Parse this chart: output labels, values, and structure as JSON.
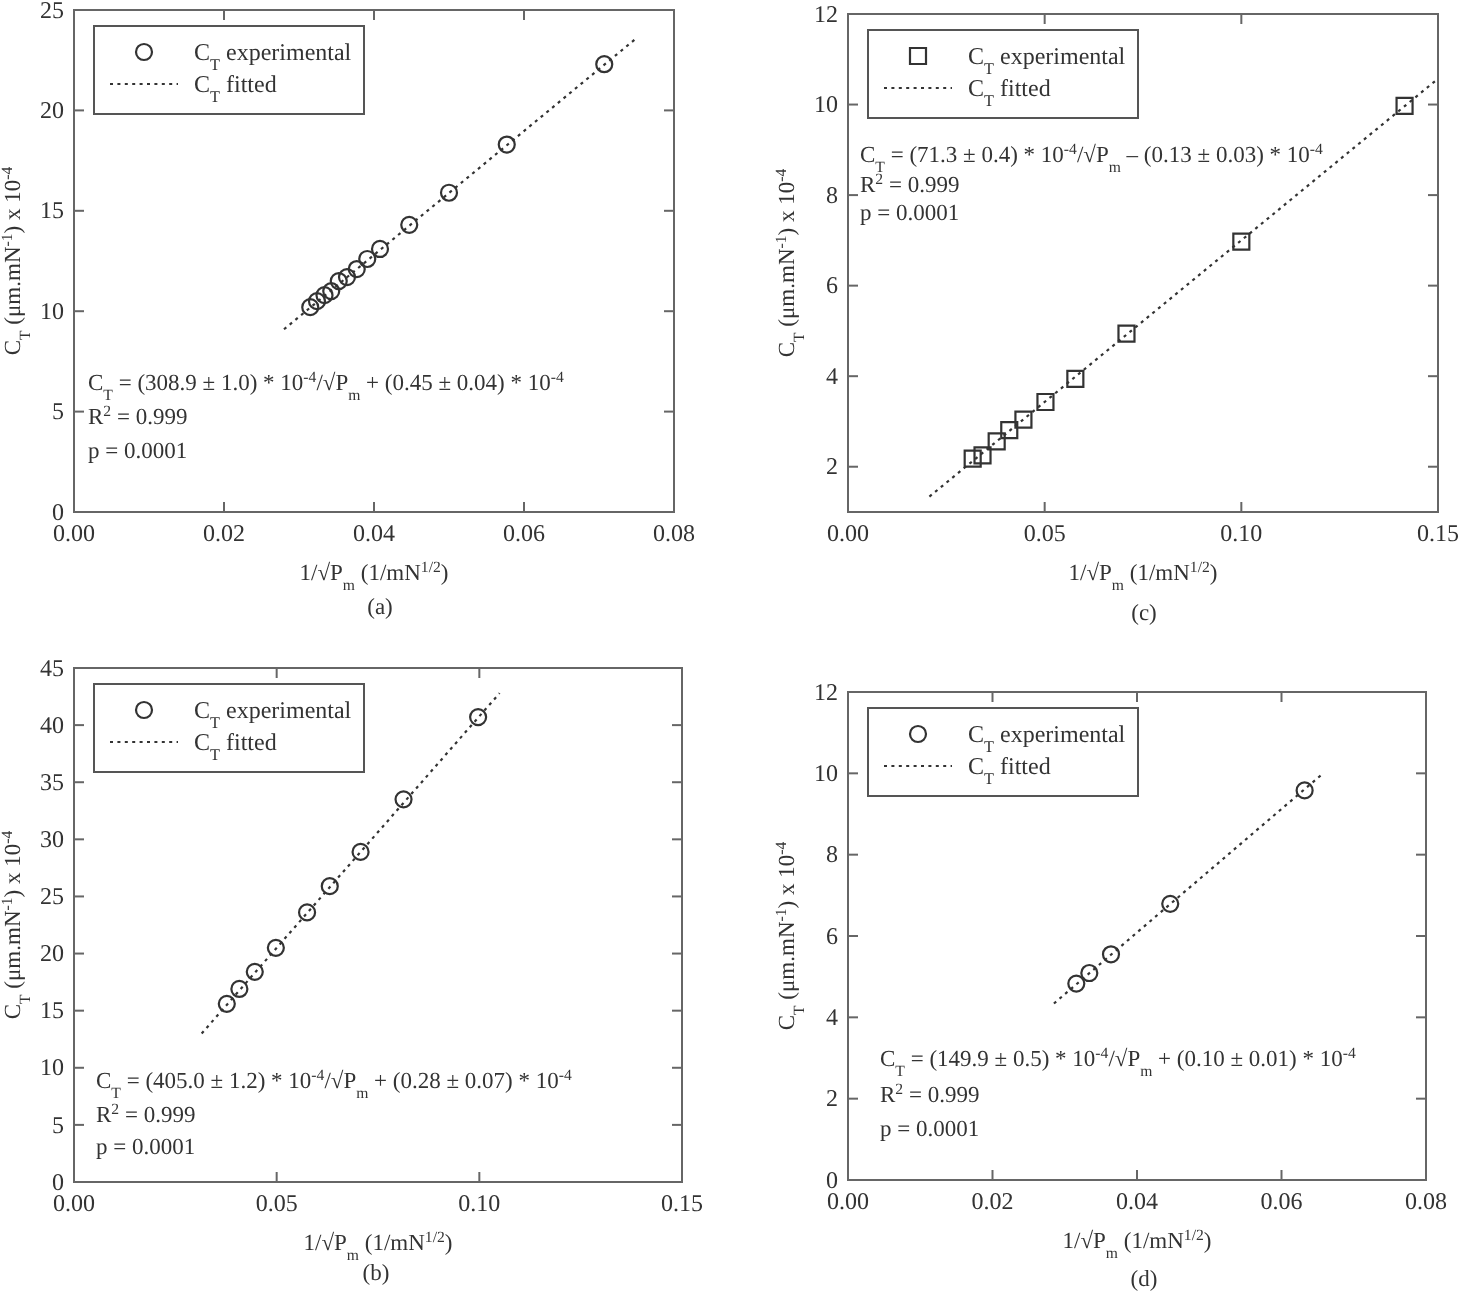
{
  "chart_data": [
    {
      "type": "scatter",
      "xlabel": "1/√P$_{m}$ (1/mN$^{1/2}$)",
      "ylabel": "C$_{T}$ (μm.mN$^{-1}$) x 10$^{-4}$",
      "xlim": [
        0,
        0.08
      ],
      "xticks": [
        {
          "value": 0,
          "label": "0.00"
        },
        {
          "value": 0.02,
          "label": "0.02"
        },
        {
          "value": 0.04,
          "label": "0.04"
        },
        {
          "value": 0.06,
          "label": "0.06"
        },
        {
          "value": 0.08,
          "label": "0.08"
        }
      ],
      "ylim": [
        0,
        25
      ],
      "yticks": [
        0,
        5,
        10,
        15,
        20,
        25
      ],
      "legend": "top left",
      "grid": false,
      "annotations": [
        "C$_{T}$ = (308.9 ± 1.0) * 10$^{-4}$/√P$_{m}$ + (0.45 ± 0.04) * 10$^{-4}$",
        "R$^{2}$ = 0.999",
        "p = 0.0001",
        "(a)"
      ],
      "series": [
        {
          "name": "C$_{T}$ experimental",
          "type": "scatter",
          "marker": "circle",
          "color": "#333333",
          "x": [
            0.0315,
            0.0324,
            0.0334,
            0.0343,
            0.0353,
            0.0364,
            0.0377,
            0.0391,
            0.0408,
            0.0447,
            0.05,
            0.0577,
            0.0707
          ],
          "values": [
            10.2,
            10.5,
            10.8,
            11.0,
            11.5,
            11.7,
            12.1,
            12.6,
            13.1,
            14.3,
            15.9,
            18.3,
            22.3
          ]
        },
        {
          "name": "C$_{T}$ fitted",
          "type": "line",
          "line_style": "dotted",
          "marker": "none",
          "color": "#333333",
          "x": [
            0.028,
            0.075
          ],
          "values": [
            9.1,
            23.6
          ]
        }
      ]
    },
    {
      "type": "scatter",
      "xlabel": "1/√P$_{m}$ (1/mN$^{1/2}$)",
      "ylabel": "C$_{T}$ (μm.mN$^{-1}$) x 10$^{-4}$",
      "xlim": [
        0,
        0.15
      ],
      "xticks": [
        {
          "value": 0,
          "label": "0.00"
        },
        {
          "value": 0.05,
          "label": "0.05"
        },
        {
          "value": 0.1,
          "label": "0.10"
        },
        {
          "value": 0.15,
          "label": "0.15"
        }
      ],
      "ylim": [
        1,
        12
      ],
      "yticks": [
        2,
        4,
        6,
        8,
        10,
        12
      ],
      "legend": "top left",
      "grid": false,
      "annotations": [
        "C$_{T}$ = (71.3 ± 0.4) * 10$^{-4}$/√P$_{m}$ – (0.13 ± 0.03) * 10$^{-4}$",
        "R$^{2}$ = 0.999",
        "p = 0.0001",
        "(c)"
      ],
      "series": [
        {
          "name": "C$_{T}$ experimental",
          "type": "scatter",
          "marker": "square",
          "color": "#333333",
          "x": [
            0.0317,
            0.0342,
            0.0378,
            0.041,
            0.0446,
            0.0502,
            0.0578,
            0.0708,
            0.1,
            0.1415
          ],
          "values": [
            2.18,
            2.25,
            2.56,
            2.81,
            3.04,
            3.43,
            3.94,
            4.94,
            6.97,
            9.97
          ]
        },
        {
          "name": "C$_{T}$ fitted",
          "type": "line",
          "line_style": "dotted",
          "marker": "none",
          "color": "#333333",
          "x": [
            0.0207,
            0.15
          ],
          "values": [
            1.34,
            10.57
          ]
        }
      ]
    },
    {
      "type": "scatter",
      "xlabel": "1/√P$_{m}$ (1/mN$^{1/2}$)",
      "ylabel": "C$_{T}$ (μm.mN$^{-1}$) x 10$^{-4}$",
      "xlim": [
        0,
        0.15
      ],
      "xticks": [
        {
          "value": 0,
          "label": "0.00"
        },
        {
          "value": 0.05,
          "label": "0.05"
        },
        {
          "value": 0.1,
          "label": "0.10"
        },
        {
          "value": 0.15,
          "label": "0.15"
        }
      ],
      "ylim": [
        0,
        45
      ],
      "yticks": [
        0,
        5,
        10,
        15,
        20,
        25,
        30,
        35,
        40,
        45
      ],
      "legend": "top left",
      "grid": false,
      "annotations": [
        "C$_{T}$ = (405.0 ± 1.2) * 10$^{-4}$/√P$_{m}$ + (0.28 ± 0.07) * 10$^{-4}$",
        "R$^{2}$ = 0.999",
        "p = 0.0001",
        "(b)"
      ],
      "series": [
        {
          "name": "C$_{T}$ experimental",
          "type": "scatter",
          "marker": "circle",
          "color": "#333333",
          "x": [
            0.0377,
            0.0408,
            0.0446,
            0.0498,
            0.0575,
            0.0631,
            0.0707,
            0.0813,
            0.0997
          ],
          "values": [
            15.6,
            16.9,
            18.4,
            20.5,
            23.6,
            25.9,
            28.9,
            33.5,
            40.7
          ]
        },
        {
          "name": "C$_{T}$ fitted",
          "type": "line",
          "line_style": "dotted",
          "marker": "none",
          "color": "#333333",
          "x": [
            0.0315,
            0.105
          ],
          "values": [
            13.0,
            42.8
          ]
        }
      ]
    },
    {
      "type": "scatter",
      "xlabel": "1/√P$_{m}$ (1/mN$^{1/2}$)",
      "ylabel": "C$_{T}$ (μm.mN$^{-1}$) x 10$^{-4}$",
      "xlim": [
        0,
        0.08
      ],
      "xticks": [
        {
          "value": 0,
          "label": "0.00"
        },
        {
          "value": 0.02,
          "label": "0.02"
        },
        {
          "value": 0.04,
          "label": "0.04"
        },
        {
          "value": 0.06,
          "label": "0.06"
        },
        {
          "value": 0.08,
          "label": "0.08"
        }
      ],
      "ylim": [
        0,
        12
      ],
      "yticks": [
        0,
        2,
        4,
        6,
        8,
        10,
        12
      ],
      "legend": "top left",
      "grid": false,
      "annotations": [
        "C$_{T}$ = (149.9 ± 0.5) * 10$^{-4}$/√P$_{m}$ + (0.10 ± 0.01) * 10$^{-4}$",
        "R$^{2}$ = 0.999",
        "p = 0.0001",
        "(d)"
      ],
      "series": [
        {
          "name": "C$_{T}$ experimental",
          "type": "scatter",
          "marker": "circle",
          "color": "#333333",
          "x": [
            0.0316,
            0.0334,
            0.0364,
            0.0446,
            0.0632
          ],
          "values": [
            4.83,
            5.09,
            5.55,
            6.79,
            9.58
          ]
        },
        {
          "name": "C$_{T}$ fitted",
          "type": "line",
          "line_style": "dotted",
          "marker": "none",
          "color": "#333333",
          "x": [
            0.0285,
            0.0657
          ],
          "values": [
            4.34,
            9.99
          ]
        }
      ]
    }
  ]
}
